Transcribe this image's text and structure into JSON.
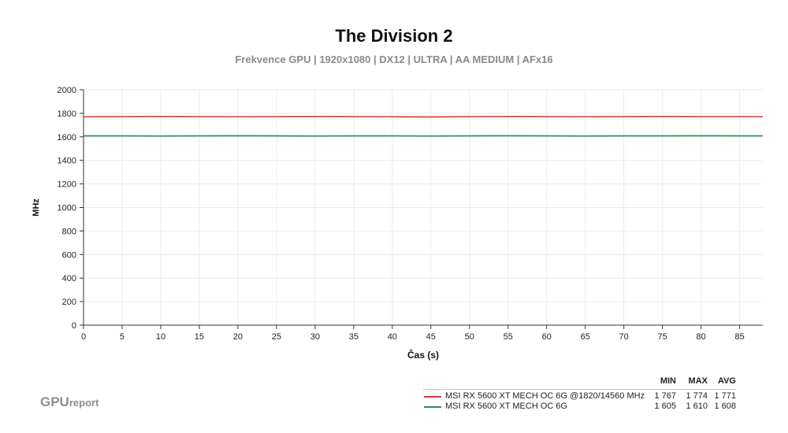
{
  "title": "The Division 2",
  "subtitle": "Frekvence GPU | 1920x1080 | DX12 | ULTRA | AA MEDIUM | AFx16",
  "logo": {
    "strong": "GPU",
    "light": "report"
  },
  "legend": {
    "headers": {
      "min": "MIN",
      "max": "MAX",
      "avg": "AVG"
    },
    "rows": [
      {
        "name": "MSI RX 5600 XT MECH OC 6G @1820/14560 MHz",
        "min": "1 767",
        "max": "1 774",
        "avg": "1 771",
        "color": "#e8302a"
      },
      {
        "name": "MSI RX 5600 XT MECH OC 6G",
        "min": "1 605",
        "max": "1 610",
        "avg": "1 608",
        "color": "#2e8b57"
      }
    ]
  },
  "chart_data": {
    "type": "line",
    "xlabel": "Čas (s)",
    "ylabel": "MHz",
    "xlim": [
      0,
      88
    ],
    "ylim": [
      0,
      2000
    ],
    "xticks": [
      0,
      5,
      10,
      15,
      20,
      25,
      30,
      35,
      40,
      45,
      50,
      55,
      60,
      65,
      70,
      75,
      80,
      85
    ],
    "yticks": [
      0,
      200,
      400,
      600,
      800,
      1000,
      1200,
      1400,
      1600,
      1800,
      2000
    ],
    "grid": true,
    "series": [
      {
        "name": "MSI RX 5600 XT MECH OC 6G @1820/14560 MHz",
        "color": "#e8302a",
        "x": [
          0,
          5,
          10,
          15,
          20,
          25,
          30,
          35,
          40,
          45,
          50,
          55,
          60,
          65,
          70,
          75,
          80,
          85,
          88
        ],
        "y": [
          1770,
          1771,
          1772,
          1771,
          1770,
          1771,
          1772,
          1771,
          1770,
          1769,
          1771,
          1772,
          1771,
          1770,
          1771,
          1772,
          1771,
          1771,
          1771
        ]
      },
      {
        "name": "MSI RX 5600 XT MECH OC 6G",
        "color": "#2e8b57",
        "x": [
          0,
          5,
          10,
          15,
          20,
          25,
          30,
          35,
          40,
          45,
          50,
          55,
          60,
          65,
          70,
          75,
          80,
          85,
          88
        ],
        "y": [
          1608,
          1608,
          1607,
          1608,
          1609,
          1608,
          1607,
          1608,
          1608,
          1607,
          1608,
          1609,
          1608,
          1607,
          1608,
          1608,
          1609,
          1608,
          1608
        ]
      }
    ]
  }
}
